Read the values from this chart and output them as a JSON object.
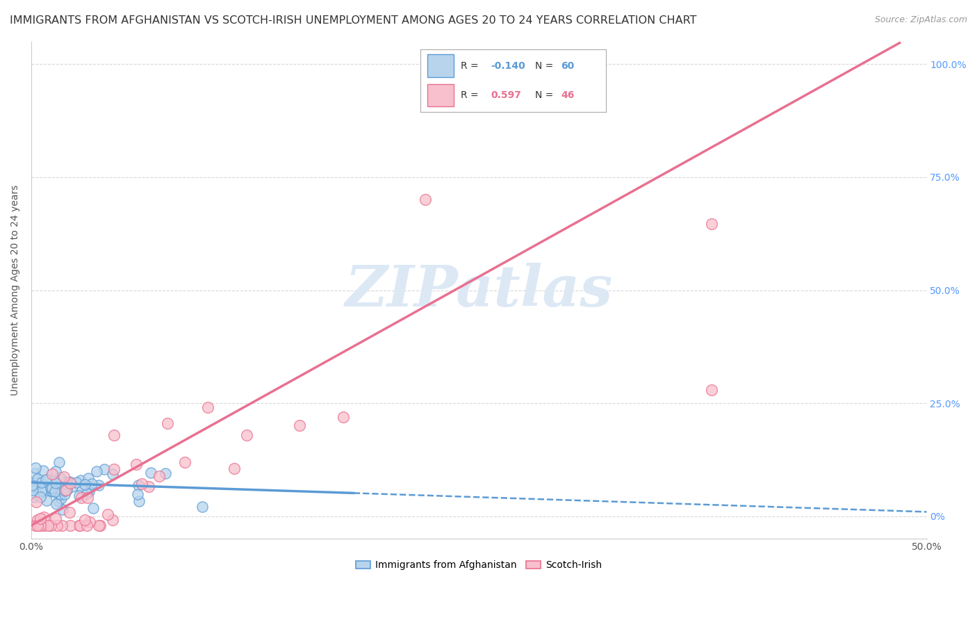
{
  "title": "IMMIGRANTS FROM AFGHANISTAN VS SCOTCH-IRISH UNEMPLOYMENT AMONG AGES 20 TO 24 YEARS CORRELATION CHART",
  "source": "Source: ZipAtlas.com",
  "ylabel": "Unemployment Among Ages 20 to 24 years",
  "xlim": [
    0.0,
    0.5
  ],
  "ylim": [
    -0.02,
    1.05
  ],
  "xticks": [
    0.0,
    0.1,
    0.2,
    0.3,
    0.4,
    0.5
  ],
  "xtick_labels": [
    "0.0%",
    "",
    "",
    "",
    "",
    "50.0%"
  ],
  "yticks": [
    0.0,
    0.25,
    0.5,
    0.75,
    1.0
  ],
  "ytick_labels_right": [
    "0%",
    "25.0%",
    "50.0%",
    "75.0%",
    "100.0%"
  ],
  "watermark": "ZIPatlas",
  "legend_r1": "-0.140",
  "legend_n1": "60",
  "legend_r2": "0.597",
  "legend_n2": "46",
  "legend_label1": "Immigrants from Afghanistan",
  "legend_label2": "Scotch-Irish",
  "color_afghan_fill": "#b8d4ec",
  "color_afghan_edge": "#5b9bd5",
  "color_scotch_fill": "#f8c0cc",
  "color_scotch_edge": "#e87090",
  "color_regression_afghan": "#5b9bd5",
  "color_regression_scotch": "#e87090",
  "background_color": "#ffffff",
  "grid_color": "#d8d8d8",
  "title_fontsize": 11.5,
  "axis_label_fontsize": 10,
  "tick_fontsize": 10,
  "right_tick_color": "#5599ff"
}
